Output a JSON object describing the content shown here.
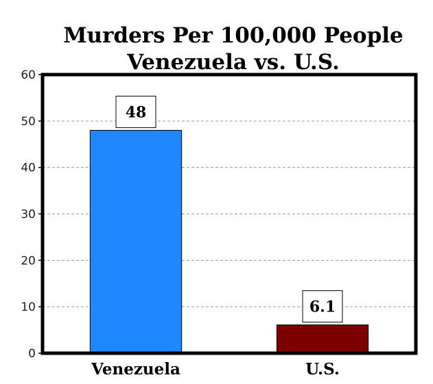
{
  "chart_data": {
    "type": "bar",
    "title": [
      "Murders Per 100,000 People",
      "Venezuela vs. U.S."
    ],
    "xlabel": "",
    "ylabel": "",
    "categories": [
      "Venezuela",
      "U.S."
    ],
    "values": [
      48,
      6.1
    ],
    "value_labels": [
      "48",
      "6.1"
    ],
    "ylim": [
      0,
      60
    ],
    "yticks": [
      0,
      10,
      20,
      30,
      40,
      50,
      60
    ],
    "grid": true,
    "legend": "none",
    "colors": [
      "#1f87ff",
      "#7d0000"
    ]
  }
}
